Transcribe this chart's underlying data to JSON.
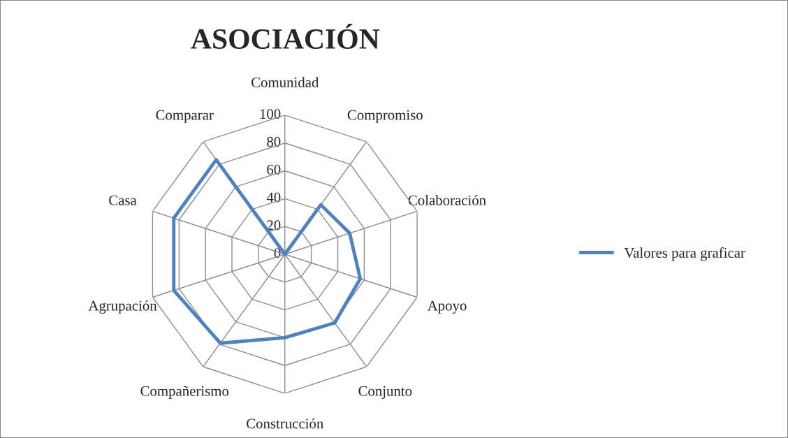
{
  "chart_data": {
    "type": "radar",
    "title": "ASOCIACIÓN",
    "categories": [
      "Comunidad",
      "Compromiso",
      "Colaboración",
      "Apoyo",
      "Conjunto",
      "Construcción",
      "Compañerismo",
      "Agrupación",
      "Casa",
      "Comparar"
    ],
    "series": [
      {
        "name": "Valores para graficar",
        "color": "#4f81bd",
        "values": [
          0,
          44,
          49,
          57,
          61,
          60,
          79,
          84,
          84,
          84
        ]
      }
    ],
    "ylim": [
      0,
      100
    ],
    "yticks": [
      0,
      20,
      40,
      60,
      80,
      100
    ],
    "grid": true,
    "legend": "right",
    "marker": "none",
    "line_style": "solid"
  }
}
